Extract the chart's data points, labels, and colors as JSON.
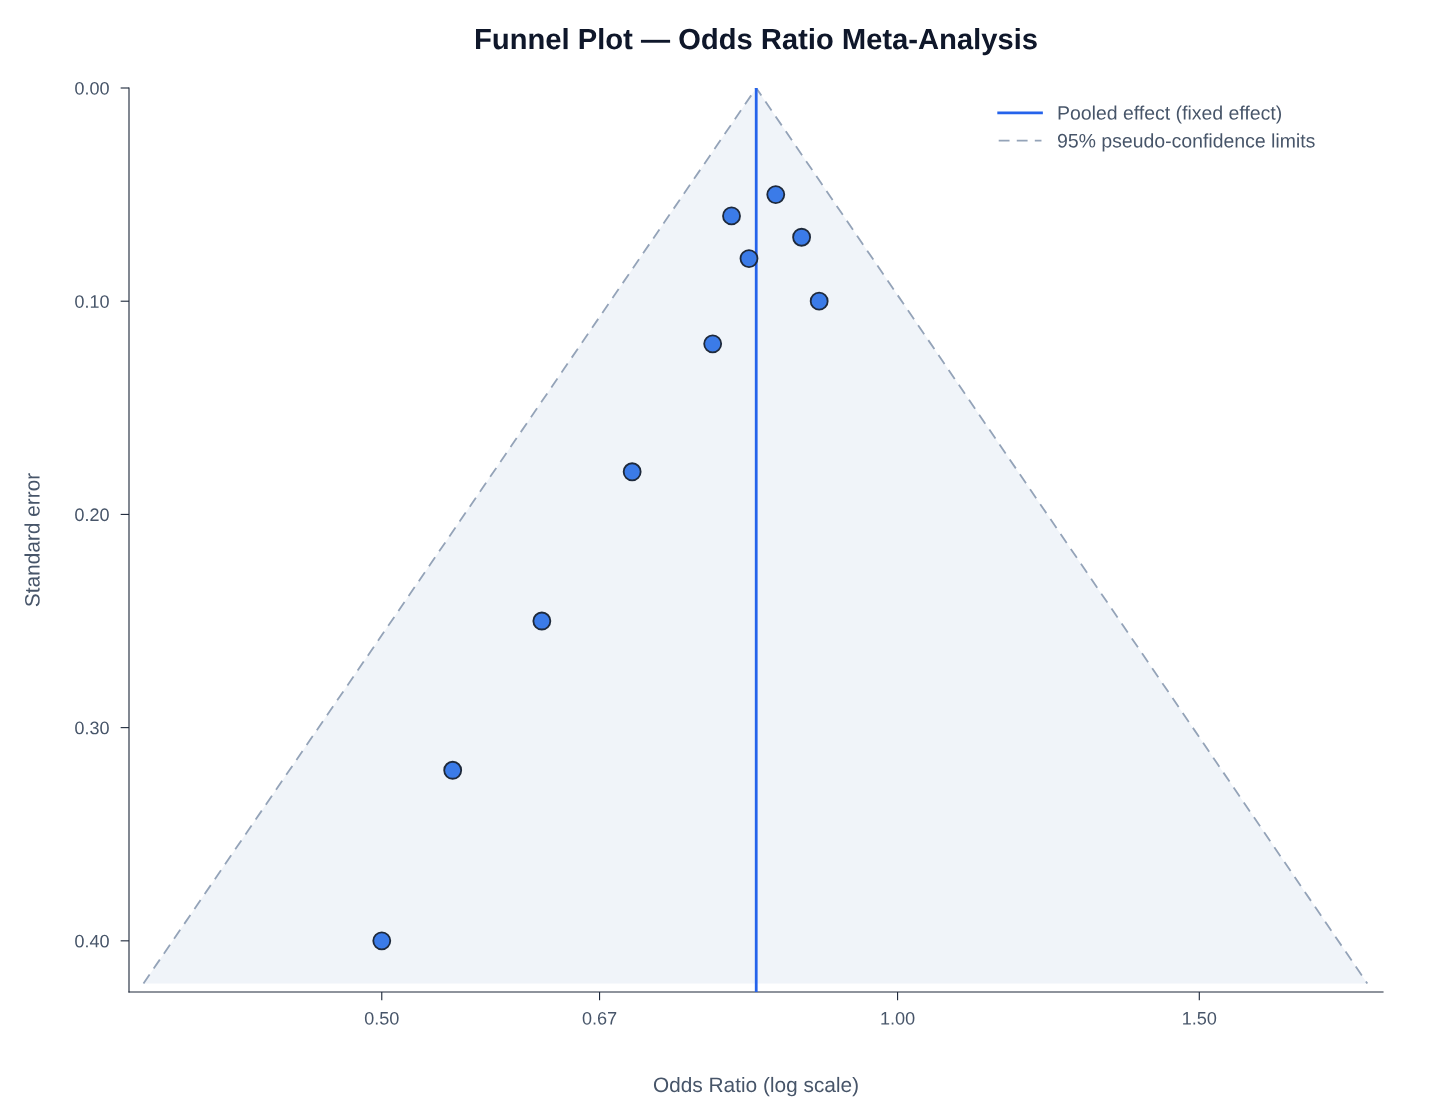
{
  "chart_data": {
    "type": "scatter",
    "title": "Funnel Plot — Odds Ratio Meta-Analysis",
    "xlabel": "Odds Ratio (log scale)",
    "ylabel": "Standard error",
    "log": "x",
    "xlim": [
      0.356,
      1.92
    ],
    "xticks": [
      {
        "value": 0.5,
        "label": "0.50"
      },
      {
        "value": 0.67,
        "label": "0.67"
      },
      {
        "value": 1.0,
        "label": "1.00"
      },
      {
        "value": 1.5,
        "label": "1.50"
      }
    ],
    "ylim": [
      0.424,
      0
    ],
    "yticks": [
      {
        "value": 0,
        "label": "0.00"
      },
      {
        "value": 0.1,
        "label": "0.10"
      },
      {
        "value": 0.2,
        "label": "0.20"
      },
      {
        "value": 0.3,
        "label": "0.30"
      },
      {
        "value": 0.4,
        "label": "0.40"
      }
    ],
    "series": [
      {
        "type": "line",
        "name": "Pooled effect (fixed effect)",
        "color": "#2563eb",
        "line_style": "solid",
        "x": [
          0.827,
          0.827
        ],
        "values": [
          0.424,
          0
        ]
      },
      {
        "type": "area",
        "name": "95% pseudo-confidence limits",
        "color": "#94a3b8",
        "line_style": "dashed",
        "marker": "none",
        "x": [
          0.363,
          0.827,
          1.88
        ],
        "values": [
          0.42,
          0,
          0.42
        ]
      },
      {
        "color": "#3b7be8",
        "marker": "circle",
        "x": [
          0.849,
          0.8,
          0.879,
          0.819,
          0.9,
          0.78,
          0.7,
          0.62,
          0.55,
          0.5
        ],
        "values": [
          0.05,
          0.06,
          0.07,
          0.08,
          0.1,
          0.12,
          0.18,
          0.25,
          0.32,
          0.4
        ]
      }
    ],
    "grid": false,
    "legend": "top right"
  }
}
